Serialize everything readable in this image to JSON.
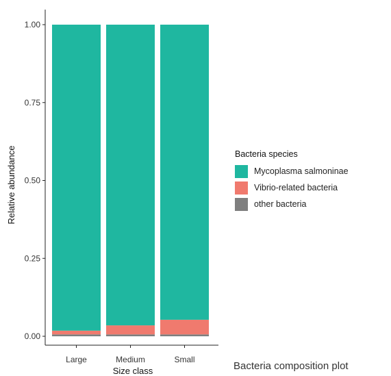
{
  "chart_data": {
    "type": "bar",
    "stacked": true,
    "categories": [
      "Large",
      "Medium",
      "Small"
    ],
    "series": [
      {
        "name": "other bacteria",
        "color": "#7f7f7f",
        "values": [
          0.006,
          0.006,
          0.006
        ]
      },
      {
        "name": "Vibrio-related bacteria",
        "color": "#f07a6e",
        "values": [
          0.012,
          0.029,
          0.047
        ]
      },
      {
        "name": "Mycoplasma salmoninae",
        "color": "#1fb7a0",
        "values": [
          0.982,
          0.965,
          0.947
        ]
      }
    ],
    "xlabel": "Size class",
    "ylabel": "Relative abundance",
    "ylim": [
      0,
      1
    ],
    "yticks": [
      "0.00",
      "0.25",
      "0.50",
      "0.75",
      "1.00"
    ],
    "grid": false,
    "legend": {
      "title": "Bacteria species",
      "placement": "right",
      "items": [
        {
          "name": "Mycoplasma salmoninae",
          "color": "#1fb7a0"
        },
        {
          "name": "Vibrio-related bacteria",
          "color": "#f07a6e"
        },
        {
          "name": "other bacteria",
          "color": "#7f7f7f"
        }
      ]
    }
  },
  "caption": "Bacteria composition plot"
}
